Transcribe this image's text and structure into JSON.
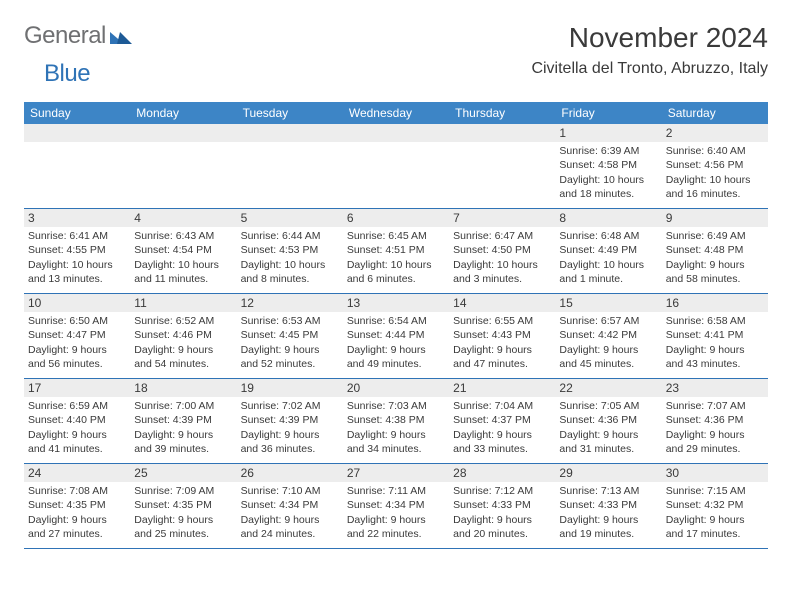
{
  "logo": {
    "text1": "General",
    "text2": "Blue"
  },
  "title": "November 2024",
  "location": "Civitella del Tronto, Abruzzo, Italy",
  "colors": {
    "header_bg": "#3d85c6",
    "border": "#2f73b6",
    "text": "#3a3a3a",
    "gray_bg": "#ededed"
  },
  "days_of_week": [
    "Sunday",
    "Monday",
    "Tuesday",
    "Wednesday",
    "Thursday",
    "Friday",
    "Saturday"
  ],
  "weeks": [
    [
      null,
      null,
      null,
      null,
      null,
      {
        "n": "1",
        "sr": "Sunrise: 6:39 AM",
        "ss": "Sunset: 4:58 PM",
        "d1": "Daylight: 10 hours",
        "d2": "and 18 minutes."
      },
      {
        "n": "2",
        "sr": "Sunrise: 6:40 AM",
        "ss": "Sunset: 4:56 PM",
        "d1": "Daylight: 10 hours",
        "d2": "and 16 minutes."
      }
    ],
    [
      {
        "n": "3",
        "sr": "Sunrise: 6:41 AM",
        "ss": "Sunset: 4:55 PM",
        "d1": "Daylight: 10 hours",
        "d2": "and 13 minutes."
      },
      {
        "n": "4",
        "sr": "Sunrise: 6:43 AM",
        "ss": "Sunset: 4:54 PM",
        "d1": "Daylight: 10 hours",
        "d2": "and 11 minutes."
      },
      {
        "n": "5",
        "sr": "Sunrise: 6:44 AM",
        "ss": "Sunset: 4:53 PM",
        "d1": "Daylight: 10 hours",
        "d2": "and 8 minutes."
      },
      {
        "n": "6",
        "sr": "Sunrise: 6:45 AM",
        "ss": "Sunset: 4:51 PM",
        "d1": "Daylight: 10 hours",
        "d2": "and 6 minutes."
      },
      {
        "n": "7",
        "sr": "Sunrise: 6:47 AM",
        "ss": "Sunset: 4:50 PM",
        "d1": "Daylight: 10 hours",
        "d2": "and 3 minutes."
      },
      {
        "n": "8",
        "sr": "Sunrise: 6:48 AM",
        "ss": "Sunset: 4:49 PM",
        "d1": "Daylight: 10 hours",
        "d2": "and 1 minute."
      },
      {
        "n": "9",
        "sr": "Sunrise: 6:49 AM",
        "ss": "Sunset: 4:48 PM",
        "d1": "Daylight: 9 hours",
        "d2": "and 58 minutes."
      }
    ],
    [
      {
        "n": "10",
        "sr": "Sunrise: 6:50 AM",
        "ss": "Sunset: 4:47 PM",
        "d1": "Daylight: 9 hours",
        "d2": "and 56 minutes."
      },
      {
        "n": "11",
        "sr": "Sunrise: 6:52 AM",
        "ss": "Sunset: 4:46 PM",
        "d1": "Daylight: 9 hours",
        "d2": "and 54 minutes."
      },
      {
        "n": "12",
        "sr": "Sunrise: 6:53 AM",
        "ss": "Sunset: 4:45 PM",
        "d1": "Daylight: 9 hours",
        "d2": "and 52 minutes."
      },
      {
        "n": "13",
        "sr": "Sunrise: 6:54 AM",
        "ss": "Sunset: 4:44 PM",
        "d1": "Daylight: 9 hours",
        "d2": "and 49 minutes."
      },
      {
        "n": "14",
        "sr": "Sunrise: 6:55 AM",
        "ss": "Sunset: 4:43 PM",
        "d1": "Daylight: 9 hours",
        "d2": "and 47 minutes."
      },
      {
        "n": "15",
        "sr": "Sunrise: 6:57 AM",
        "ss": "Sunset: 4:42 PM",
        "d1": "Daylight: 9 hours",
        "d2": "and 45 minutes."
      },
      {
        "n": "16",
        "sr": "Sunrise: 6:58 AM",
        "ss": "Sunset: 4:41 PM",
        "d1": "Daylight: 9 hours",
        "d2": "and 43 minutes."
      }
    ],
    [
      {
        "n": "17",
        "sr": "Sunrise: 6:59 AM",
        "ss": "Sunset: 4:40 PM",
        "d1": "Daylight: 9 hours",
        "d2": "and 41 minutes."
      },
      {
        "n": "18",
        "sr": "Sunrise: 7:00 AM",
        "ss": "Sunset: 4:39 PM",
        "d1": "Daylight: 9 hours",
        "d2": "and 39 minutes."
      },
      {
        "n": "19",
        "sr": "Sunrise: 7:02 AM",
        "ss": "Sunset: 4:39 PM",
        "d1": "Daylight: 9 hours",
        "d2": "and 36 minutes."
      },
      {
        "n": "20",
        "sr": "Sunrise: 7:03 AM",
        "ss": "Sunset: 4:38 PM",
        "d1": "Daylight: 9 hours",
        "d2": "and 34 minutes."
      },
      {
        "n": "21",
        "sr": "Sunrise: 7:04 AM",
        "ss": "Sunset: 4:37 PM",
        "d1": "Daylight: 9 hours",
        "d2": "and 33 minutes."
      },
      {
        "n": "22",
        "sr": "Sunrise: 7:05 AM",
        "ss": "Sunset: 4:36 PM",
        "d1": "Daylight: 9 hours",
        "d2": "and 31 minutes."
      },
      {
        "n": "23",
        "sr": "Sunrise: 7:07 AM",
        "ss": "Sunset: 4:36 PM",
        "d1": "Daylight: 9 hours",
        "d2": "and 29 minutes."
      }
    ],
    [
      {
        "n": "24",
        "sr": "Sunrise: 7:08 AM",
        "ss": "Sunset: 4:35 PM",
        "d1": "Daylight: 9 hours",
        "d2": "and 27 minutes."
      },
      {
        "n": "25",
        "sr": "Sunrise: 7:09 AM",
        "ss": "Sunset: 4:35 PM",
        "d1": "Daylight: 9 hours",
        "d2": "and 25 minutes."
      },
      {
        "n": "26",
        "sr": "Sunrise: 7:10 AM",
        "ss": "Sunset: 4:34 PM",
        "d1": "Daylight: 9 hours",
        "d2": "and 24 minutes."
      },
      {
        "n": "27",
        "sr": "Sunrise: 7:11 AM",
        "ss": "Sunset: 4:34 PM",
        "d1": "Daylight: 9 hours",
        "d2": "and 22 minutes."
      },
      {
        "n": "28",
        "sr": "Sunrise: 7:12 AM",
        "ss": "Sunset: 4:33 PM",
        "d1": "Daylight: 9 hours",
        "d2": "and 20 minutes."
      },
      {
        "n": "29",
        "sr": "Sunrise: 7:13 AM",
        "ss": "Sunset: 4:33 PM",
        "d1": "Daylight: 9 hours",
        "d2": "and 19 minutes."
      },
      {
        "n": "30",
        "sr": "Sunrise: 7:15 AM",
        "ss": "Sunset: 4:32 PM",
        "d1": "Daylight: 9 hours",
        "d2": "and 17 minutes."
      }
    ]
  ]
}
